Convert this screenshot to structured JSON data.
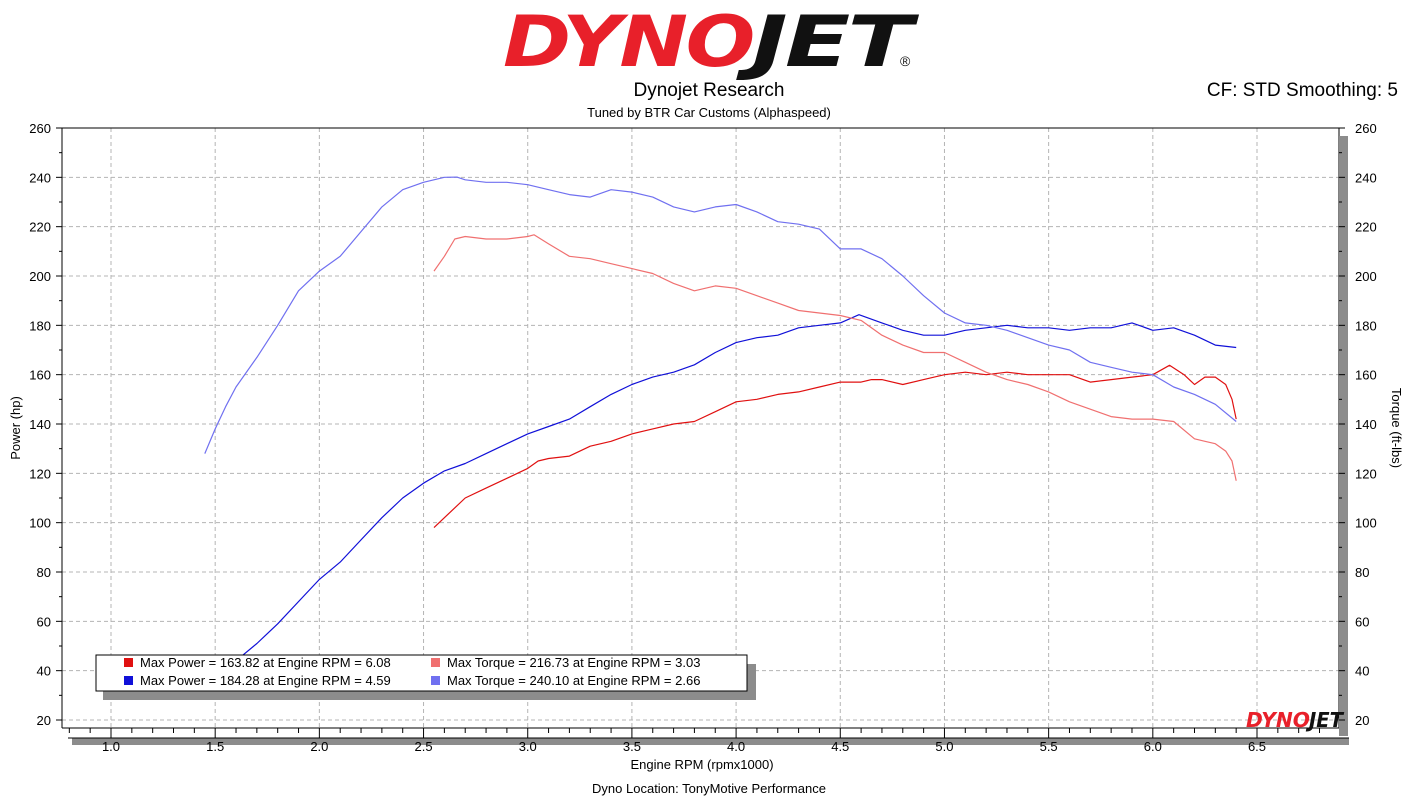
{
  "brand": {
    "logo_text": "DYNOJET",
    "logo_mark": "®",
    "logo_colors": {
      "red": "#e8202a",
      "black": "#111111"
    }
  },
  "header": {
    "title": "Dynojet Research",
    "subtitle": "Tuned by BTR Car Customs (Alphaspeed)",
    "right_info": "CF: STD Smoothing: 5"
  },
  "footer": {
    "location": "Dyno Location: TonyMotive Performance"
  },
  "chart_data": {
    "type": "line",
    "xlabel": "Engine RPM (rpmx1000)",
    "ylabel_left": "Power (hp)",
    "ylabel_right": "Torque (ft-lbs)",
    "xlim": [
      0.8,
      6.9
    ],
    "ylim": [
      15,
      260
    ],
    "grid": true,
    "x_ticks": [
      "1.0",
      "1.5",
      "2.0",
      "2.5",
      "3.0",
      "3.5",
      "4.0",
      "4.5",
      "5.0",
      "5.5",
      "6.0",
      "6.5"
    ],
    "y_ticks_left": [
      "20",
      "40",
      "60",
      "80",
      "100",
      "120",
      "140",
      "160",
      "180",
      "200",
      "220",
      "240",
      "260"
    ],
    "y_ticks_right": [
      "20",
      "40",
      "60",
      "80",
      "100",
      "120",
      "140",
      "160",
      "180",
      "200",
      "220",
      "240",
      "260"
    ],
    "legend_position": "bottom-left",
    "series": [
      {
        "key": "red_power",
        "color": "#e01010",
        "x": [
          2.55,
          2.6,
          2.7,
          2.8,
          2.9,
          3.0,
          3.05,
          3.1,
          3.2,
          3.3,
          3.4,
          3.5,
          3.6,
          3.7,
          3.8,
          3.9,
          4.0,
          4.1,
          4.2,
          4.3,
          4.4,
          4.5,
          4.6,
          4.65,
          4.7,
          4.8,
          4.9,
          5.0,
          5.1,
          5.2,
          5.3,
          5.4,
          5.5,
          5.6,
          5.7,
          5.8,
          5.9,
          6.0,
          6.08,
          6.15,
          6.2,
          6.25,
          6.3,
          6.35,
          6.38,
          6.4
        ],
        "values": [
          98,
          102,
          110,
          114,
          118,
          122,
          125,
          126,
          127,
          131,
          133,
          136,
          138,
          140,
          141,
          145,
          149,
          150,
          152,
          153,
          155,
          157,
          157,
          158,
          158,
          156,
          158,
          160,
          161,
          160,
          161,
          160,
          160,
          160,
          157,
          158,
          159,
          160,
          163.8,
          160,
          156,
          159,
          159,
          156,
          150,
          142
        ]
      },
      {
        "key": "blue_power",
        "color": "#1010d8",
        "x": [
          1.6,
          1.7,
          1.8,
          1.9,
          2.0,
          2.1,
          2.2,
          2.3,
          2.4,
          2.5,
          2.6,
          2.7,
          2.8,
          2.9,
          3.0,
          3.1,
          3.2,
          3.3,
          3.4,
          3.5,
          3.6,
          3.7,
          3.8,
          3.9,
          4.0,
          4.1,
          4.2,
          4.3,
          4.4,
          4.5,
          4.59,
          4.7,
          4.8,
          4.9,
          5.0,
          5.1,
          5.2,
          5.3,
          5.4,
          5.5,
          5.6,
          5.7,
          5.8,
          5.9,
          6.0,
          6.1,
          6.2,
          6.3,
          6.4
        ],
        "values": [
          44,
          51,
          59,
          68,
          77,
          84,
          93,
          102,
          110,
          116,
          121,
          124,
          128,
          132,
          136,
          139,
          142,
          147,
          152,
          156,
          159,
          161,
          164,
          169,
          173,
          175,
          176,
          179,
          180,
          181,
          184.3,
          181,
          178,
          176,
          176,
          178,
          179,
          180,
          179,
          179,
          178,
          179,
          179,
          181,
          178,
          179,
          176,
          172,
          171
        ]
      },
      {
        "key": "red_torque",
        "color": "#f07070",
        "x": [
          2.55,
          2.6,
          2.65,
          2.7,
          2.8,
          2.9,
          3.0,
          3.03,
          3.1,
          3.2,
          3.3,
          3.4,
          3.5,
          3.6,
          3.7,
          3.8,
          3.9,
          4.0,
          4.1,
          4.2,
          4.3,
          4.4,
          4.5,
          4.6,
          4.7,
          4.8,
          4.9,
          5.0,
          5.1,
          5.2,
          5.3,
          5.4,
          5.5,
          5.6,
          5.7,
          5.8,
          5.9,
          6.0,
          6.1,
          6.2,
          6.25,
          6.3,
          6.35,
          6.38,
          6.4
        ],
        "values": [
          202,
          208,
          215,
          216,
          215,
          215,
          216,
          216.7,
          213,
          208,
          207,
          205,
          203,
          201,
          197,
          194,
          196,
          195,
          192,
          189,
          186,
          185,
          184,
          182,
          176,
          172,
          169,
          169,
          165,
          161,
          158,
          156,
          153,
          149,
          146,
          143,
          142,
          142,
          141,
          134,
          133,
          132,
          129,
          125,
          117
        ]
      },
      {
        "key": "blue_torque",
        "color": "#7070f0",
        "x": [
          1.45,
          1.5,
          1.55,
          1.6,
          1.7,
          1.8,
          1.9,
          2.0,
          2.1,
          2.2,
          2.3,
          2.4,
          2.5,
          2.6,
          2.66,
          2.7,
          2.8,
          2.9,
          3.0,
          3.1,
          3.2,
          3.3,
          3.4,
          3.5,
          3.6,
          3.7,
          3.8,
          3.9,
          4.0,
          4.1,
          4.2,
          4.3,
          4.4,
          4.5,
          4.6,
          4.7,
          4.8,
          4.9,
          5.0,
          5.1,
          5.2,
          5.3,
          5.4,
          5.5,
          5.6,
          5.7,
          5.8,
          5.9,
          6.0,
          6.1,
          6.2,
          6.3,
          6.4
        ],
        "values": [
          128,
          138,
          147,
          155,
          167,
          180,
          194,
          202,
          208,
          218,
          228,
          235,
          238,
          240,
          240.1,
          239,
          238,
          238,
          237,
          235,
          233,
          232,
          235,
          234,
          232,
          228,
          226,
          228,
          229,
          226,
          222,
          221,
          219,
          211,
          211,
          207,
          200,
          192,
          185,
          181,
          180,
          178,
          175,
          172,
          170,
          165,
          163,
          161,
          160,
          155,
          152,
          148,
          141
        ]
      }
    ],
    "legend": [
      {
        "series": "red_power",
        "label": "Max Power = 163.82 at Engine RPM = 6.08",
        "color": "#e01010"
      },
      {
        "series": "red_torque",
        "label": "Max Torque = 216.73 at Engine RPM = 3.03",
        "color": "#f07070"
      },
      {
        "series": "blue_power",
        "label": "Max Power = 184.28 at Engine RPM = 4.59",
        "color": "#1010d8"
      },
      {
        "series": "blue_torque",
        "label": "Max Torque = 240.10 at Engine RPM = 2.66",
        "color": "#7070f0"
      }
    ],
    "watermark_text": "DYNOJET"
  }
}
